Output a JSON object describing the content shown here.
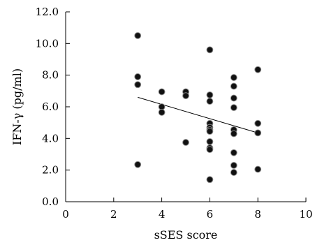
{
  "chart_data": {
    "type": "scatter",
    "xlabel": "sSES score",
    "ylabel": "IFN-γ (pg/ml)",
    "xlim": [
      0,
      10
    ],
    "ylim": [
      0,
      12
    ],
    "x_ticks": [
      "0",
      "2",
      "4",
      "6",
      "8",
      "10"
    ],
    "y_ticks": [
      "0.0",
      "2.0",
      "4.0",
      "6.0",
      "8.0",
      "10.0",
      "12.0"
    ],
    "grid": false,
    "points": [
      {
        "x": 3,
        "y": 10.5
      },
      {
        "x": 3,
        "y": 7.9
      },
      {
        "x": 3,
        "y": 7.4
      },
      {
        "x": 3,
        "y": 2.35
      },
      {
        "x": 4,
        "y": 6.95
      },
      {
        "x": 4,
        "y": 6.0
      },
      {
        "x": 4,
        "y": 5.65
      },
      {
        "x": 5,
        "y": 6.95
      },
      {
        "x": 5,
        "y": 6.7
      },
      {
        "x": 5,
        "y": 3.75
      },
      {
        "x": 6,
        "y": 9.6
      },
      {
        "x": 6,
        "y": 6.75
      },
      {
        "x": 6,
        "y": 6.35
      },
      {
        "x": 6,
        "y": 4.95
      },
      {
        "x": 6,
        "y": 4.7
      },
      {
        "x": 6,
        "y": 4.55
      },
      {
        "x": 6,
        "y": 4.45
      },
      {
        "x": 6,
        "y": 3.8
      },
      {
        "x": 6,
        "y": 3.4
      },
      {
        "x": 6,
        "y": 3.3
      },
      {
        "x": 6,
        "y": 1.4
      },
      {
        "x": 7,
        "y": 7.85
      },
      {
        "x": 7,
        "y": 7.3
      },
      {
        "x": 7,
        "y": 6.55
      },
      {
        "x": 7,
        "y": 5.95
      },
      {
        "x": 7,
        "y": 4.55
      },
      {
        "x": 7,
        "y": 4.3
      },
      {
        "x": 7,
        "y": 3.1
      },
      {
        "x": 7,
        "y": 2.3
      },
      {
        "x": 7,
        "y": 1.85
      },
      {
        "x": 8,
        "y": 8.35
      },
      {
        "x": 8,
        "y": 4.95
      },
      {
        "x": 8,
        "y": 4.35
      },
      {
        "x": 8,
        "y": 2.05
      }
    ],
    "trendline": {
      "x": [
        3,
        8
      ],
      "y": [
        6.6,
        4.35
      ]
    },
    "colors": {
      "marker": "#111111",
      "marker_edge": "#888888",
      "line": "#000000"
    }
  }
}
